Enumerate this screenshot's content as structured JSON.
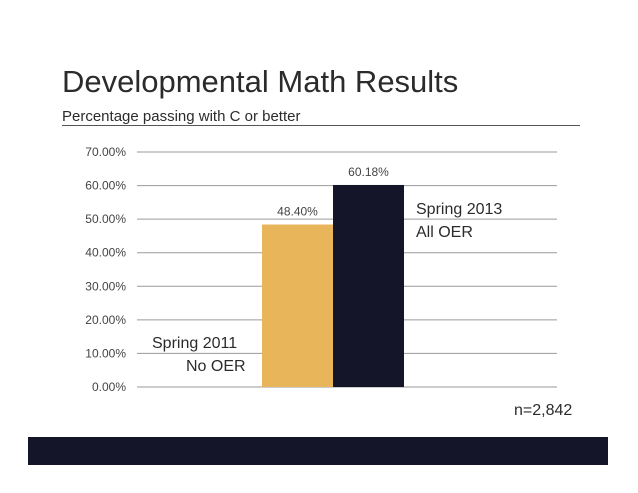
{
  "slide": {
    "title": "Developmental Math Results",
    "subtitle": "Percentage passing with C or better",
    "sample_size": "n=2,842",
    "footer_color": "#15152a"
  },
  "chart_data": {
    "type": "bar",
    "title": "Developmental Math Results",
    "subtitle": "Percentage passing with C or better",
    "xlabel": "",
    "ylabel": "",
    "ylim": [
      0,
      70
    ],
    "yticks": [
      0,
      10,
      20,
      30,
      40,
      50,
      60,
      70
    ],
    "ytick_labels": [
      "0.00%",
      "10.00%",
      "20.00%",
      "30.00%",
      "40.00%",
      "50.00%",
      "60.00%",
      "70.00%"
    ],
    "grid": true,
    "categories": [
      "Spring 2011 No OER",
      "Spring 2013 All OER"
    ],
    "values": [
      48.4,
      60.18
    ],
    "data_labels": [
      "48.40%",
      "60.18%"
    ],
    "colors": [
      "#e8b55a",
      "#15152a"
    ],
    "annotations": [
      {
        "line1": "Spring 2011",
        "line2": "No OER"
      },
      {
        "line1": "Spring 2013",
        "line2": "All OER"
      }
    ]
  }
}
